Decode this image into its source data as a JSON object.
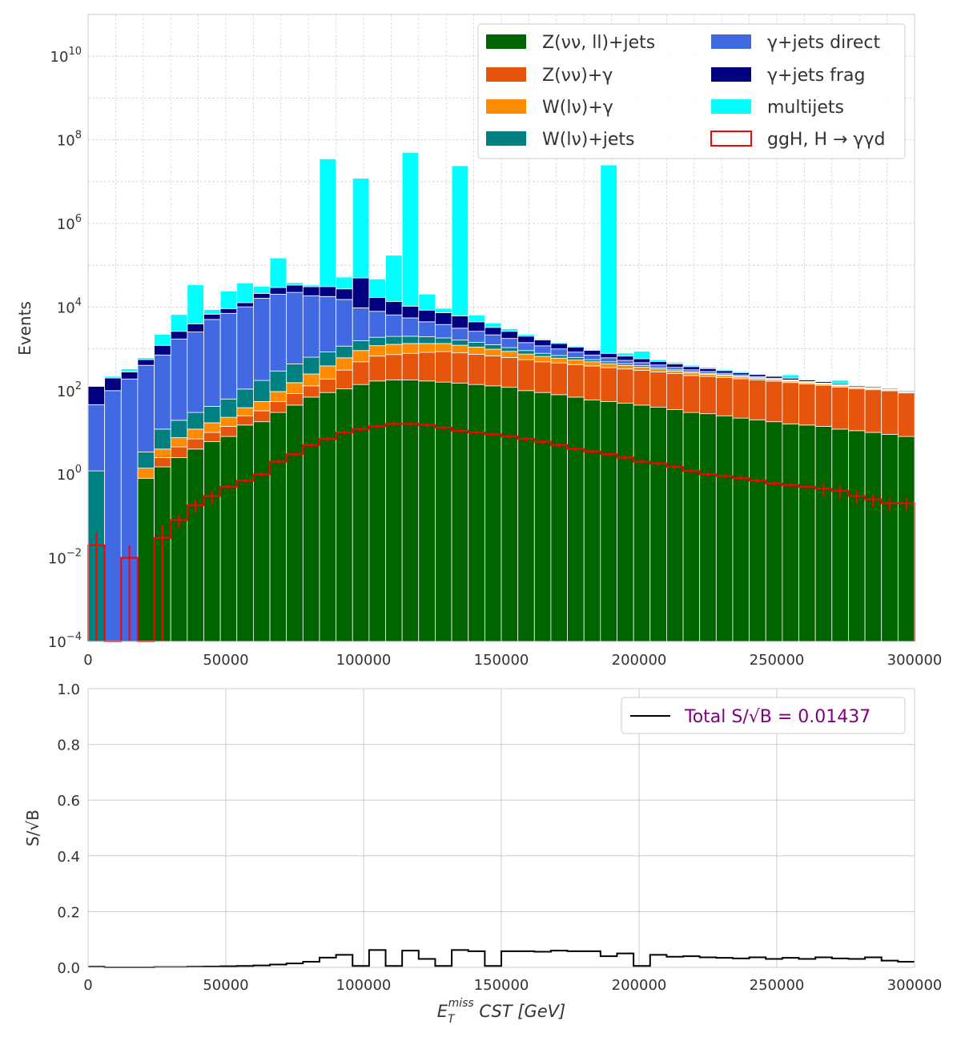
{
  "chart_data": [
    {
      "type": "bar",
      "stacked": true,
      "yscale": "log",
      "ylabel": "Events",
      "xlim": [
        0,
        300000
      ],
      "ylim": [
        0.0001,
        100000000000
      ],
      "x_ticks": [
        "0",
        "50000",
        "100000",
        "150000",
        "200000",
        "250000",
        "300000"
      ],
      "y_ticks": [
        "10^-4",
        "10^-2",
        "10^0",
        "10^2",
        "10^4",
        "10^6",
        "10^8",
        "10^10"
      ],
      "bin_width": 6000,
      "grid": true,
      "legend_position": "top-right",
      "series": [
        {
          "name": "Z(νν, ll)+jets",
          "color": "#006400",
          "values": [
            0,
            0,
            0,
            0.8,
            1.5,
            2.5,
            4,
            6,
            8,
            15,
            18,
            30,
            45,
            70,
            90,
            110,
            140,
            170,
            180,
            180,
            170,
            160,
            150,
            140,
            130,
            120,
            100,
            90,
            80,
            70,
            60,
            55,
            50,
            45,
            40,
            35,
            30,
            28,
            25,
            22,
            20,
            18,
            16,
            15,
            14,
            12,
            11,
            10,
            9,
            8
          ]
        },
        {
          "name": "Z(νν)+γ",
          "color": "#e6550d",
          "values": [
            0,
            0,
            0,
            0,
            1,
            2,
            3,
            4,
            6,
            10,
            15,
            25,
            40,
            60,
            100,
            200,
            350,
            500,
            550,
            600,
            650,
            700,
            650,
            600,
            550,
            500,
            450,
            400,
            380,
            350,
            330,
            300,
            280,
            260,
            240,
            220,
            200,
            190,
            180,
            170,
            160,
            150,
            140,
            130,
            120,
            110,
            100,
            95,
            90,
            80
          ]
        },
        {
          "name": "W(lν)+γ",
          "color": "#ff8c00",
          "values": [
            0,
            0,
            0,
            0.6,
            1.5,
            3,
            5,
            7,
            9,
            14,
            22,
            40,
            70,
            120,
            200,
            300,
            420,
            520,
            550,
            560,
            520,
            480,
            420,
            360,
            300,
            250,
            200,
            170,
            140,
            120,
            100,
            85,
            70,
            60,
            50,
            40,
            34,
            28,
            24,
            20,
            17,
            14,
            12,
            10,
            9,
            8,
            7,
            6,
            5,
            4
          ]
        },
        {
          "name": "W(lν)+jets",
          "color": "#008080",
          "values": [
            1.2,
            0,
            0,
            2,
            8,
            12,
            18,
            25,
            40,
            70,
            120,
            200,
            280,
            380,
            450,
            550,
            650,
            700,
            700,
            660,
            600,
            480,
            400,
            330,
            280,
            200,
            160,
            120,
            95,
            75,
            60,
            50,
            40,
            32,
            25,
            20,
            16,
            13,
            10,
            8,
            6,
            5,
            4,
            3.5,
            3,
            2.5,
            2,
            1.8,
            1.5,
            1.2
          ]
        },
        {
          "name": "γ+jets direct",
          "color": "#4169e1",
          "values": [
            45,
            100,
            190,
            400,
            700,
            1700,
            2500,
            5000,
            7000,
            10000,
            16000,
            20000,
            22000,
            18000,
            17000,
            14000,
            8000,
            6000,
            4500,
            3500,
            2500,
            2000,
            1500,
            1200,
            900,
            700,
            500,
            400,
            300,
            220,
            160,
            120,
            90,
            70,
            55,
            45,
            35,
            28,
            22,
            18,
            14,
            11,
            9,
            7,
            6,
            5,
            4,
            3,
            2.5,
            2
          ]
        },
        {
          "name": "γ+jets frag",
          "color": "#000080",
          "values": [
            80,
            100,
            90,
            150,
            500,
            900,
            1400,
            1700,
            2000,
            2600,
            5000,
            9000,
            11000,
            12000,
            13000,
            12000,
            40000,
            9000,
            7000,
            5000,
            4000,
            3500,
            3000,
            1800,
            1100,
            850,
            600,
            450,
            350,
            270,
            210,
            170,
            140,
            110,
            90,
            75,
            60,
            50,
            40,
            32,
            26,
            22,
            18,
            15,
            12,
            10,
            8,
            7,
            6,
            5
          ]
        },
        {
          "name": "multijets",
          "color": "#00ffff",
          "values": [
            0,
            20,
            50,
            60,
            1000,
            4000,
            30000,
            2000,
            15000,
            25000,
            10000,
            120000,
            5000,
            3000,
            35000000,
            25000,
            12000000,
            30000,
            160000,
            50000000,
            12000,
            2000,
            24000000,
            2000,
            900,
            400,
            200,
            100,
            80,
            60,
            40,
            25000000,
            120,
            300,
            50,
            40,
            30,
            25,
            20,
            15,
            12,
            10,
            40,
            8,
            7,
            30,
            5,
            4,
            3,
            3
          ]
        },
        {
          "name": "ggH, H → γγd",
          "color": "#ff0000",
          "kind": "step-errorbar",
          "values": [
            0.02,
            0,
            0.01,
            0,
            0.03,
            0.08,
            0.18,
            0.3,
            0.5,
            0.7,
            1,
            2,
            3,
            5,
            7,
            10,
            12,
            14,
            16,
            16,
            15,
            13,
            11,
            10,
            9,
            8,
            7,
            6,
            5,
            4,
            3.5,
            3,
            2.5,
            2,
            1.8,
            1.5,
            1.2,
            1,
            0.9,
            0.8,
            0.7,
            0.6,
            0.55,
            0.5,
            0.45,
            0.4,
            0.3,
            0.25,
            0.2,
            0.2
          ]
        }
      ]
    },
    {
      "type": "line",
      "step": true,
      "ylabel": "S/√B",
      "xlabel": "E_T^miss CST [GeV]",
      "xlim": [
        0,
        300000
      ],
      "ylim": [
        0,
        1
      ],
      "x_ticks": [
        "0",
        "50000",
        "100000",
        "150000",
        "200000",
        "250000",
        "300000"
      ],
      "y_ticks": [
        "0.0",
        "0.2",
        "0.4",
        "0.6",
        "0.8",
        "1.0"
      ],
      "bin_width": 6000,
      "grid": true,
      "legend_position": "top-right",
      "series": [
        {
          "name": "Total S/√B = 0.01437",
          "color": "#000000",
          "values": [
            0.002,
            0,
            0,
            0,
            0.001,
            0.001,
            0.002,
            0.003,
            0.004,
            0.005,
            0.007,
            0.01,
            0.014,
            0.02,
            0.035,
            0.045,
            0.005,
            0.062,
            0.005,
            0.06,
            0.03,
            0.005,
            0.062,
            0.058,
            0.005,
            0.058,
            0.058,
            0.056,
            0.06,
            0.058,
            0.058,
            0.04,
            0.05,
            0.005,
            0.045,
            0.038,
            0.04,
            0.036,
            0.034,
            0.032,
            0.036,
            0.03,
            0.034,
            0.03,
            0.036,
            0.032,
            0.03,
            0.036,
            0.024,
            0.02
          ]
        }
      ]
    }
  ]
}
